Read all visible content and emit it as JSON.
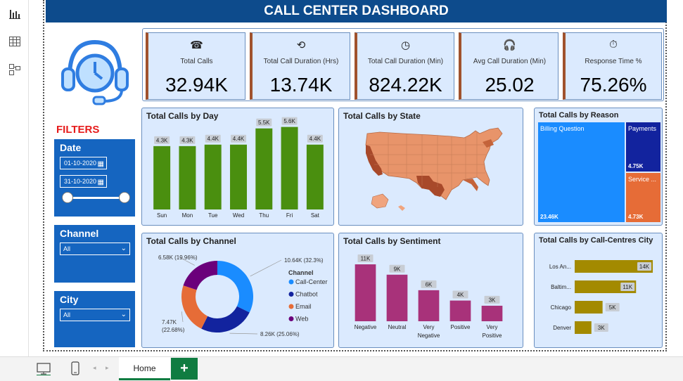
{
  "header": {
    "title": "CALL CENTER DASHBOARD"
  },
  "kpis": [
    {
      "label": "Total Calls",
      "value": "32.94K",
      "icon": "phone-ringing-icon"
    },
    {
      "label": "Total Call Duration (Hrs)",
      "value": "13.74K",
      "icon": "24h-clock-icon"
    },
    {
      "label": "Total Call Duration (Min)",
      "value": "824.22K",
      "icon": "60min-clock-icon"
    },
    {
      "label": "Avg Call Duration (Min)",
      "value": "25.02",
      "icon": "headset-icon"
    },
    {
      "label": "Response Time %",
      "value": "75.26%",
      "icon": "stopwatch-icon"
    }
  ],
  "filters": {
    "title": "FILTERS",
    "date": {
      "label": "Date",
      "start": "01-10-2020",
      "end": "31-10-2020"
    },
    "channel": {
      "label": "Channel",
      "value": "All"
    },
    "city": {
      "label": "City",
      "value": "All"
    }
  },
  "panels": {
    "by_day": "Total Calls by Day",
    "by_state": "Total Calls by State",
    "by_reason": "Total Calls by Reason",
    "by_channel": "Total Calls by Channel",
    "by_sentiment": "Total Calls by Sentiment",
    "by_city": "Total Calls by Call-Centres City"
  },
  "bottom": {
    "tab_home": "Home",
    "add_label": "+"
  },
  "colors": {
    "header": "#0d4b8c",
    "kpi_bg": "#dbeafe",
    "accent_kpi": "#a0522d",
    "slicer": "#1565c0",
    "green": "#4a8f0f",
    "magenta": "#a8327a",
    "olive": "#a38a00"
  },
  "chart_data": [
    {
      "id": "by_day",
      "type": "bar",
      "title": "Total Calls by Day",
      "categories": [
        "Sun",
        "Mon",
        "Tue",
        "Wed",
        "Thu",
        "Fri",
        "Sat"
      ],
      "values": [
        4300,
        4300,
        4400,
        4400,
        5500,
        5600,
        4400
      ],
      "labels": [
        "4.3K",
        "4.3K",
        "4.4K",
        "4.4K",
        "5.5K",
        "5.6K",
        "4.4K"
      ],
      "color": "#4a8f0f",
      "ylim": [
        0,
        6200
      ]
    },
    {
      "id": "by_reason",
      "type": "treemap",
      "title": "Total Calls by Reason",
      "items": [
        {
          "name": "Billing Question",
          "value": 23460,
          "label": "23.46K",
          "color": "#1a8cff"
        },
        {
          "name": "Payments",
          "value": 4750,
          "label": "4.75K",
          "color": "#12239e"
        },
        {
          "name": "Service ...",
          "value": 4730,
          "label": "4.73K",
          "color": "#e66c37"
        }
      ]
    },
    {
      "id": "by_channel",
      "type": "pie",
      "title": "Total Calls by Channel",
      "legend_title": "Channel",
      "slices": [
        {
          "name": "Call-Center",
          "value": 10640,
          "label": "10.64K (32.3%)",
          "color": "#1a8cff"
        },
        {
          "name": "Chatbot",
          "value": 8260,
          "label": "8.26K (25.06%)",
          "color": "#12239e"
        },
        {
          "name": "Email",
          "value": 7470,
          "label": "7.47K (22.68%)",
          "color": "#e66c37"
        },
        {
          "name": "Web",
          "value": 6580,
          "label": "6.58K (19.96%)",
          "color": "#6b007b"
        }
      ]
    },
    {
      "id": "by_sentiment",
      "type": "bar",
      "title": "Total Calls by Sentiment",
      "categories": [
        "Negative",
        "Neutral",
        "Very Negative",
        "Positive",
        "Very Positive"
      ],
      "values": [
        11000,
        9000,
        6000,
        4000,
        3000
      ],
      "labels": [
        "11K",
        "9K",
        "6K",
        "4K",
        "3K"
      ],
      "color": "#a8327a",
      "ylim": [
        0,
        12500
      ]
    },
    {
      "id": "by_city",
      "type": "bar-horizontal",
      "title": "Total Calls by Call-Centres City",
      "categories": [
        "Los An...",
        "Baltim...",
        "Chicago",
        "Denver"
      ],
      "values": [
        14000,
        11000,
        5000,
        3000
      ],
      "labels": [
        "14K",
        "11K",
        "5K",
        "3K"
      ],
      "color": "#a38a00",
      "xlim": [
        0,
        14500
      ]
    }
  ]
}
